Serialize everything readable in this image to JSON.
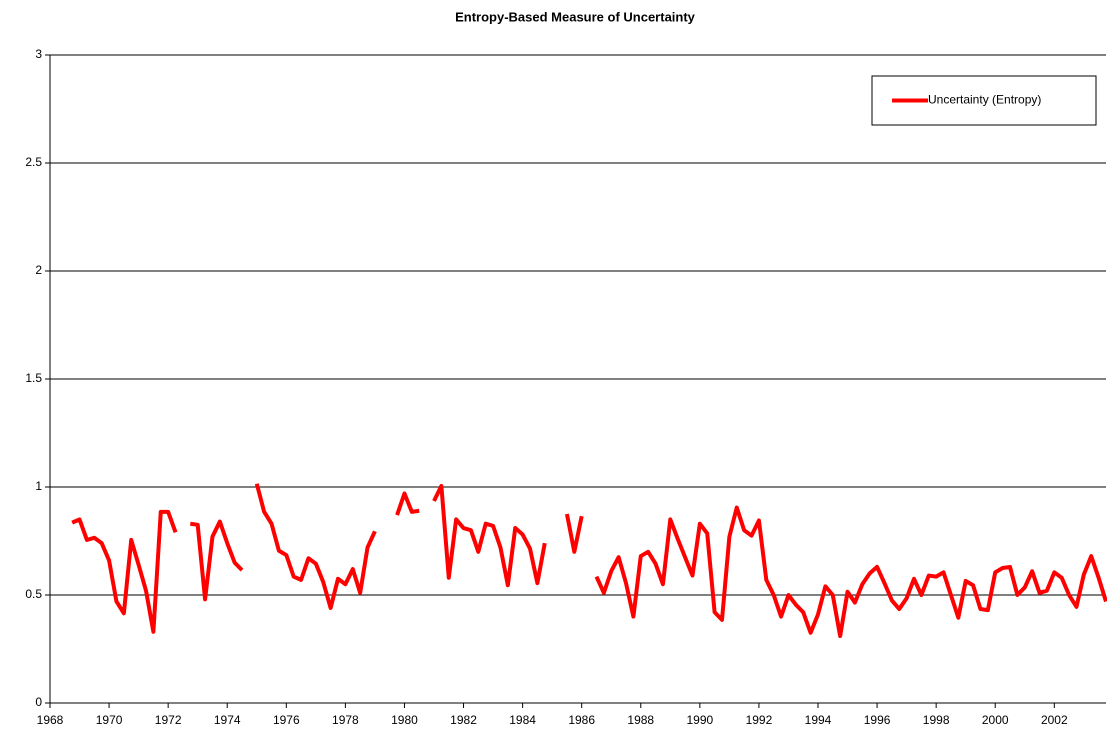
{
  "chart_data": {
    "type": "line",
    "title": "Entropy-Based Measure of Uncertainty",
    "x": [
      1968.75,
      1969,
      1969.25,
      1969.5,
      1969.75,
      1970,
      1970.25,
      1970.5,
      1970.75,
      1971,
      1971.25,
      1971.5,
      1971.75,
      1972,
      1972.25,
      1972.5,
      1972.75,
      1973,
      1973.25,
      1973.5,
      1973.75,
      1974,
      1974.25,
      1974.5,
      1974.75,
      1975,
      1975.25,
      1975.5,
      1975.75,
      1976,
      1976.25,
      1976.5,
      1976.75,
      1977,
      1977.25,
      1977.5,
      1977.75,
      1978,
      1978.25,
      1978.5,
      1978.75,
      1979,
      1979.25,
      1979.5,
      1979.75,
      1980,
      1980.25,
      1980.5,
      1980.75,
      1981,
      1981.25,
      1981.5,
      1981.75,
      1982,
      1982.25,
      1982.5,
      1982.75,
      1983,
      1983.25,
      1983.5,
      1983.75,
      1984,
      1984.25,
      1984.5,
      1984.75,
      1985,
      1985.25,
      1985.5,
      1985.75,
      1986,
      1986.25,
      1986.5,
      1986.75,
      1987,
      1987.25,
      1987.5,
      1987.75,
      1988,
      1988.25,
      1988.5,
      1988.75,
      1989,
      1989.25,
      1989.5,
      1989.75,
      1990,
      1990.25,
      1990.5,
      1990.75,
      1991,
      1991.25,
      1991.5,
      1991.75,
      1992,
      1992.25,
      1992.5,
      1992.75,
      1993,
      1993.25,
      1993.5,
      1993.75,
      1994,
      1994.25,
      1994.5,
      1994.75,
      1995,
      1995.25,
      1995.5,
      1995.75,
      1996,
      1996.25,
      1996.5,
      1996.75,
      1997,
      1997.25,
      1997.5,
      1997.75,
      1998,
      1998.25,
      1998.5,
      1998.75,
      1999,
      1999.25,
      1999.5,
      1999.75,
      2000,
      2000.25,
      2000.5,
      2000.75,
      2001,
      2001.25,
      2001.5,
      2001.75,
      2002,
      2002.25,
      2002.5,
      2002.75,
      2003,
      2003.25,
      2003.5,
      2003.75
    ],
    "series": [
      {
        "name": "Uncertainty (Entropy)",
        "color": "#ff0000",
        "values": [
          0.835,
          0.85,
          0.755,
          0.765,
          0.74,
          0.66,
          0.47,
          0.415,
          0.755,
          0.64,
          0.52,
          0.33,
          0.885,
          0.885,
          0.79,
          null,
          0.83,
          0.825,
          0.48,
          0.77,
          0.84,
          0.74,
          0.65,
          0.615,
          null,
          1.015,
          0.885,
          0.83,
          0.705,
          0.685,
          0.585,
          0.57,
          0.67,
          0.645,
          0.56,
          0.44,
          0.575,
          0.55,
          0.62,
          0.51,
          0.72,
          0.795,
          null,
          null,
          0.87,
          0.97,
          0.885,
          0.89,
          null,
          0.935,
          1.005,
          0.58,
          0.85,
          0.81,
          0.8,
          0.7,
          0.83,
          0.82,
          0.72,
          0.545,
          0.81,
          0.78,
          0.715,
          0.555,
          0.74,
          null,
          null,
          0.875,
          0.7,
          0.865,
          null,
          0.585,
          0.51,
          0.61,
          0.675,
          0.555,
          0.4,
          0.68,
          0.7,
          0.645,
          0.55,
          0.85,
          0.76,
          0.675,
          0.59,
          0.83,
          0.785,
          0.42,
          0.385,
          0.77,
          0.905,
          0.8,
          0.775,
          0.845,
          0.57,
          0.5,
          0.4,
          0.5,
          0.455,
          0.42,
          0.325,
          0.41,
          0.54,
          0.5,
          0.31,
          0.515,
          0.465,
          0.55,
          0.6,
          0.63,
          0.555,
          0.475,
          0.435,
          0.485,
          0.575,
          0.5,
          0.59,
          0.585,
          0.605,
          0.5,
          0.395,
          0.565,
          0.545,
          0.435,
          0.43,
          0.605,
          0.625,
          0.63,
          0.5,
          0.535,
          0.61,
          0.51,
          0.52,
          0.605,
          0.58,
          0.5,
          0.445,
          0.595,
          0.68,
          0.58,
          0.47
        ]
      }
    ],
    "xlim": [
      1968,
      2003.75
    ],
    "xticks": [
      1968,
      1970,
      1972,
      1974,
      1976,
      1978,
      1980,
      1982,
      1984,
      1986,
      1988,
      1990,
      1992,
      1994,
      1996,
      1998,
      2000,
      2002
    ],
    "ylim": [
      0,
      3
    ],
    "yticks": [
      0,
      0.5,
      1,
      1.5,
      2,
      2.5,
      3
    ],
    "grid": true,
    "legend": "upper right"
  }
}
